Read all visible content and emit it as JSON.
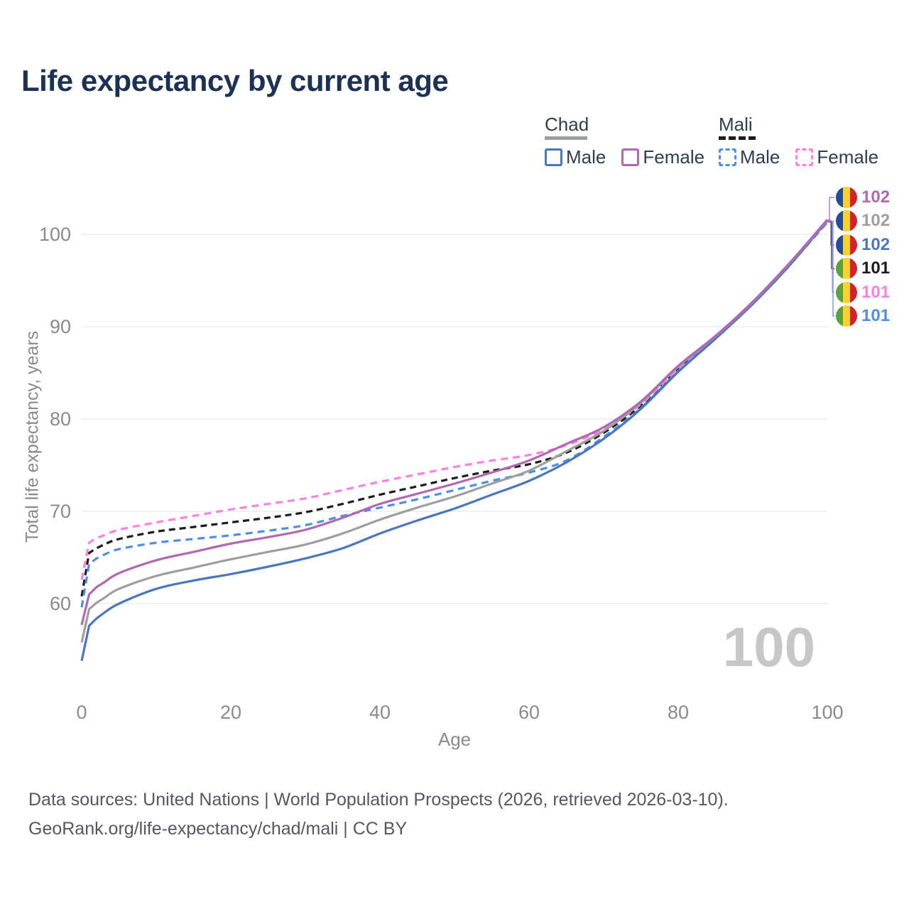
{
  "title": "Life expectancy by current age",
  "watermark": "100",
  "axes": {
    "x_label": "Age",
    "y_label": "Total life expectancy, years"
  },
  "legend": {
    "groups": [
      {
        "title": "Chad",
        "underline_series": "chad_total",
        "items": [
          {
            "label": "Male",
            "series": "chad_male"
          },
          {
            "label": "Female",
            "series": "chad_female"
          }
        ]
      },
      {
        "title": "Mali",
        "underline_series": "mali_total",
        "items": [
          {
            "label": "Male",
            "series": "mali_male"
          },
          {
            "label": "Female",
            "series": "mali_female"
          }
        ]
      }
    ]
  },
  "footer": {
    "line1": "Data sources: United Nations | World Population Prospects (2026, retrieved 2026-03-10).",
    "line2": "GeoRank.org/life-expectancy/chad/mali | CC BY"
  },
  "chart_data": {
    "type": "line",
    "title": "Life expectancy by current age",
    "xlabel": "Age",
    "ylabel": "Total life expectancy, years",
    "xlim": [
      0,
      100
    ],
    "ylim": [
      54,
      104
    ],
    "xticks": [
      0,
      20,
      40,
      60,
      80,
      100
    ],
    "yticks": [
      60,
      70,
      80,
      90,
      100
    ],
    "grid": "horizontal",
    "legend_position": "top-right",
    "ages": [
      0,
      1,
      2,
      3,
      5,
      10,
      15,
      20,
      25,
      30,
      35,
      40,
      45,
      50,
      55,
      60,
      65,
      70,
      75,
      80,
      85,
      90,
      95,
      100
    ],
    "series": [
      {
        "id": "chad_male",
        "name": "Chad — Male",
        "country": "Chad",
        "color": "#4a76bf",
        "dash": "solid",
        "values": [
          53.8,
          57.6,
          58.4,
          59.0,
          60.0,
          61.6,
          62.5,
          63.2,
          64.0,
          64.9,
          66.0,
          67.6,
          69.0,
          70.3,
          71.8,
          73.3,
          75.3,
          77.85,
          81.1,
          85.1,
          88.7,
          92.45,
          96.7,
          101.5
        ]
      },
      {
        "id": "chad_total",
        "name": "Chad — Both sexes",
        "country": "Chad",
        "color": "#9e9e9e",
        "dash": "solid",
        "values": [
          55.8,
          59.4,
          60.1,
          60.6,
          61.6,
          63.0,
          63.9,
          64.8,
          65.6,
          66.4,
          67.6,
          69.1,
          70.4,
          71.6,
          73.0,
          74.4,
          76.5,
          78.7,
          81.75,
          85.65,
          88.95,
          92.65,
          96.9,
          101.55
        ]
      },
      {
        "id": "chad_female",
        "name": "Chad — Female",
        "country": "Chad",
        "color": "#b168b1",
        "dash": "solid",
        "values": [
          57.7,
          61.0,
          61.8,
          62.3,
          63.3,
          64.7,
          65.6,
          66.5,
          67.2,
          68.0,
          69.3,
          70.8,
          71.9,
          73.0,
          74.2,
          75.5,
          77.3,
          79.1,
          81.9,
          85.75,
          89.0,
          92.7,
          96.95,
          101.6
        ]
      },
      {
        "id": "mali_male",
        "name": "Mali — Male",
        "country": "Mali",
        "color": "#4b8fe8",
        "dash": "dashed",
        "values": [
          59.6,
          64.3,
          64.9,
          65.3,
          65.9,
          66.6,
          67.0,
          67.4,
          67.9,
          68.5,
          69.5,
          70.4,
          71.3,
          72.3,
          73.3,
          74.2,
          75.5,
          78.05,
          81.2,
          85.2,
          88.75,
          92.5,
          96.75,
          101.3
        ]
      },
      {
        "id": "mali_total",
        "name": "Mali — Both sexes",
        "country": "Mali",
        "color": "#1c1c1c",
        "dash": "dashed",
        "values": [
          60.8,
          65.5,
          66.0,
          66.4,
          67.0,
          67.8,
          68.3,
          68.8,
          69.3,
          69.9,
          70.8,
          71.8,
          72.7,
          73.6,
          74.4,
          75.1,
          76.35,
          78.5,
          81.45,
          85.35,
          88.8,
          92.55,
          96.75,
          101.4
        ]
      },
      {
        "id": "mali_female",
        "name": "Mali — Female",
        "country": "Mali",
        "color": "#ff7ee4",
        "dash": "dashed",
        "values": [
          62.6,
          66.6,
          67.1,
          67.4,
          68.0,
          68.8,
          69.5,
          70.2,
          70.8,
          71.4,
          72.3,
          73.2,
          74.0,
          74.8,
          75.5,
          76.1,
          77.15,
          78.9,
          81.6,
          85.45,
          88.85,
          92.6,
          96.8,
          101.45
        ]
      }
    ],
    "end_labels": [
      {
        "series": "chad_female",
        "value": "102",
        "flag": "chad"
      },
      {
        "series": "chad_total",
        "value": "102",
        "flag": "chad"
      },
      {
        "series": "chad_male",
        "value": "102",
        "flag": "chad"
      },
      {
        "series": "mali_total",
        "value": "101",
        "flag": "mali"
      },
      {
        "series": "mali_female",
        "value": "101",
        "flag": "mali"
      },
      {
        "series": "mali_male",
        "value": "101",
        "flag": "mali"
      }
    ],
    "flags": {
      "chad": [
        "#234d9c",
        "#fcd12b",
        "#d5212e"
      ],
      "mali": [
        "#5ba23f",
        "#fcd12b",
        "#d5212e"
      ]
    }
  }
}
